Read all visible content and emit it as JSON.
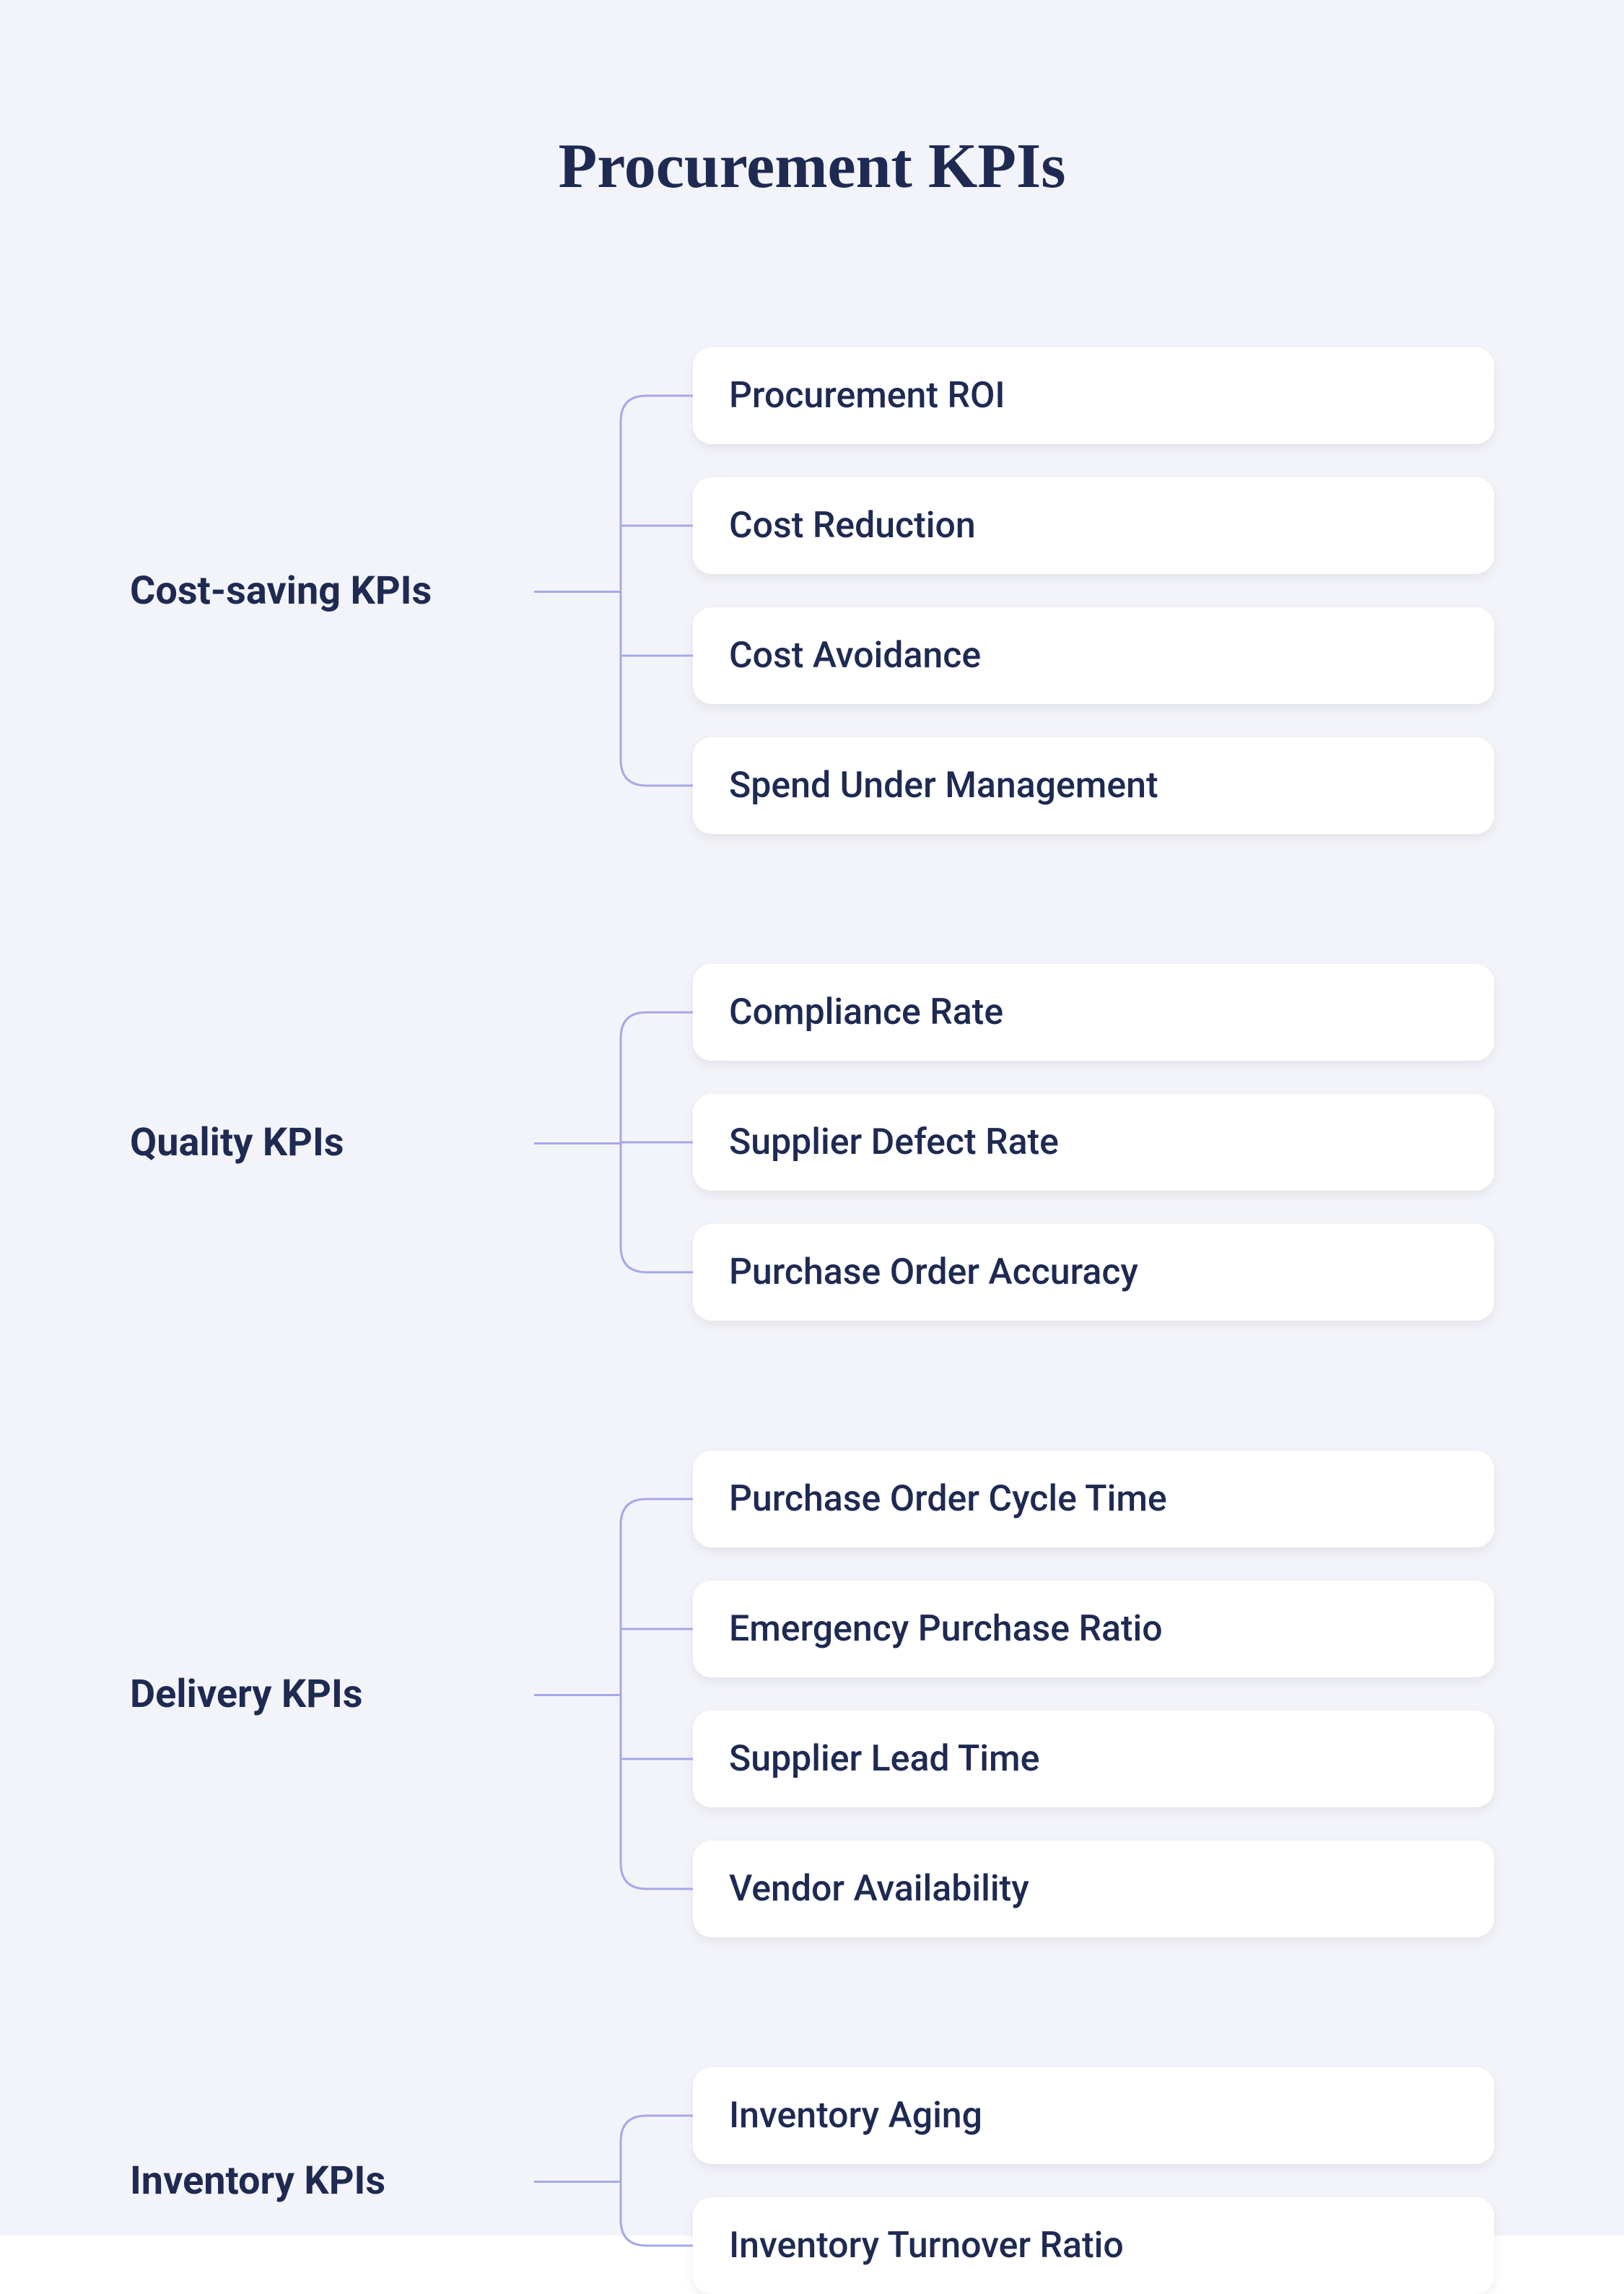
{
  "diagram": {
    "type": "tree",
    "title": "Procurement KPIs",
    "background_color": "#f3f4f9",
    "title_color": "#1e2a52",
    "label_color": "#1e2a52",
    "item_text_color": "#1e2a52",
    "item_bg_color": "#ffffff",
    "connector_color": "#a6a8e8",
    "connector_width": 3,
    "item_border_radius": 26,
    "title_fontsize": 88,
    "label_fontsize": 54,
    "item_fontsize": 50,
    "groups": [
      {
        "label": "Cost-saving KPIs",
        "items": [
          "Procurement ROI",
          "Cost Reduction",
          "Cost Avoidance",
          "Spend Under Management"
        ]
      },
      {
        "label": "Quality KPIs",
        "items": [
          "Compliance Rate",
          "Supplier Defect Rate",
          "Purchase Order Accuracy"
        ]
      },
      {
        "label": "Delivery KPIs",
        "items": [
          "Purchase Order Cycle Time",
          "Emergency Purchase Ratio",
          "Supplier Lead Time",
          "Vendor Availability"
        ]
      },
      {
        "label": "Inventory KPIs",
        "items": [
          "Inventory Aging",
          "Inventory Turnover Ratio"
        ]
      }
    ]
  }
}
